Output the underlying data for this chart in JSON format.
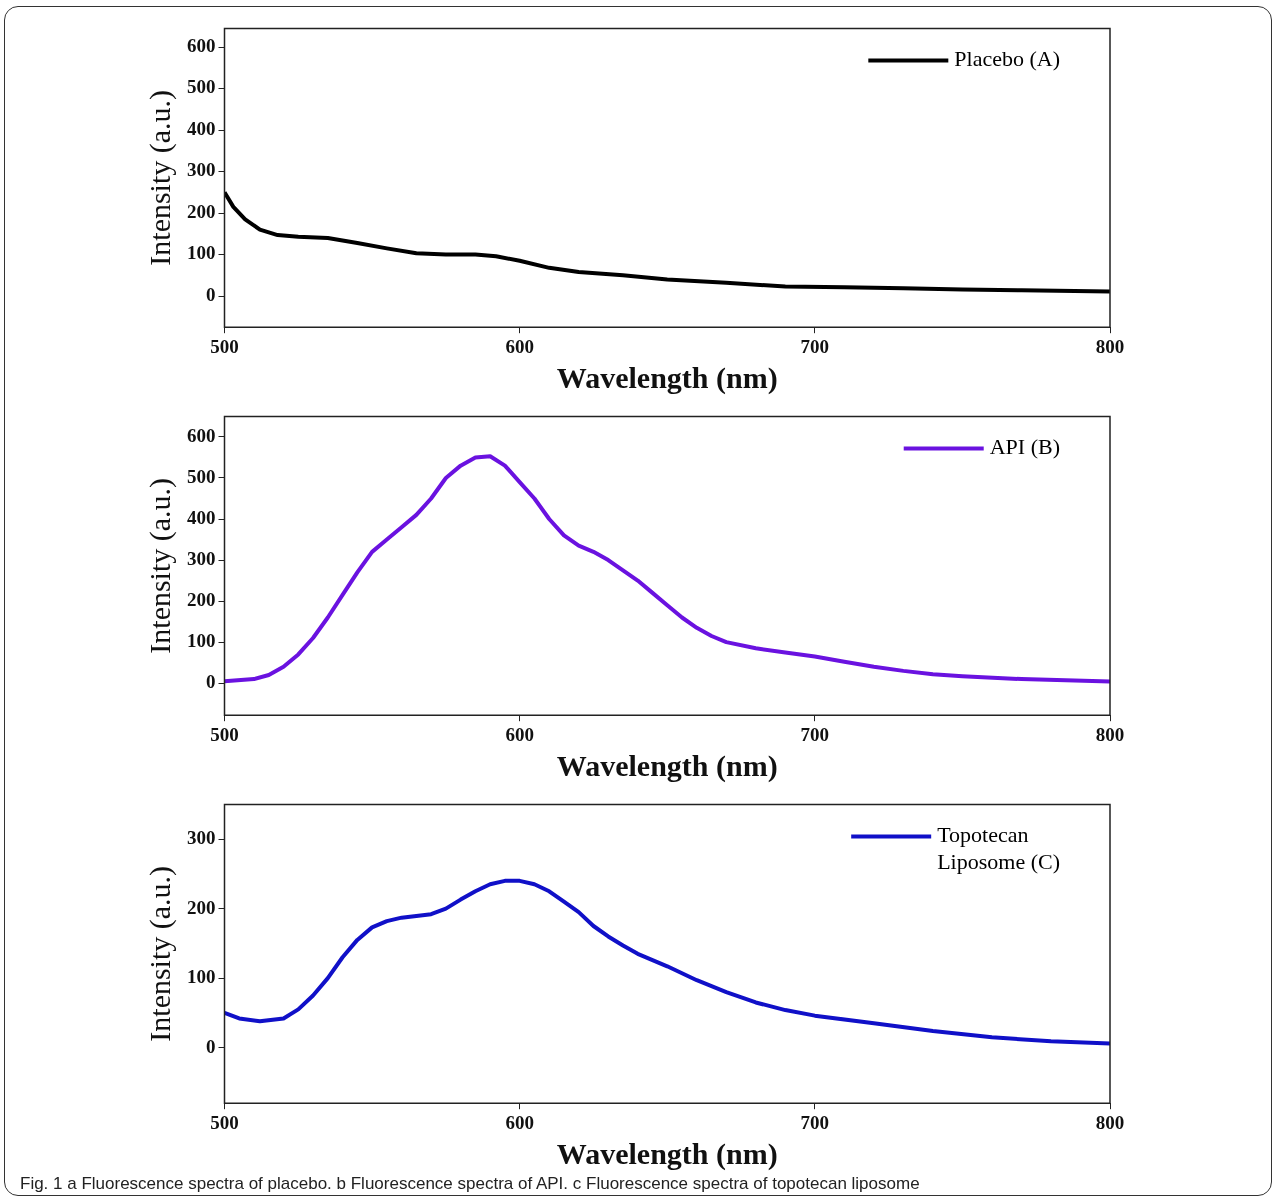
{
  "chart_data": [
    {
      "type": "line",
      "xlabel": "Wavelength (nm)",
      "ylabel": "Intensity (a.u.)",
      "xlim": [
        500,
        800
      ],
      "xticks": [
        500,
        600,
        700,
        800
      ],
      "ylim": [
        -75,
        645
      ],
      "yticks": [
        0,
        100,
        200,
        300,
        400,
        500,
        600
      ],
      "legend": "top right",
      "x": [
        500,
        503,
        507,
        512,
        518,
        525,
        535,
        545,
        555,
        565,
        575,
        585,
        592,
        600,
        610,
        620,
        635,
        650,
        670,
        690,
        710,
        730,
        750,
        770,
        800
      ],
      "series": [
        {
          "name": "Placebo (A)",
          "color": "#000000",
          "values": [
            250,
            215,
            185,
            160,
            147,
            143,
            140,
            128,
            115,
            103,
            100,
            100,
            96,
            85,
            68,
            58,
            50,
            40,
            32,
            23,
            21,
            19,
            16,
            14,
            11
          ]
        }
      ]
    },
    {
      "type": "line",
      "xlabel": "Wavelength (nm)",
      "ylabel": "Intensity (a.u.)",
      "xlim": [
        500,
        800
      ],
      "xticks": [
        500,
        600,
        700,
        800
      ],
      "ylim": [
        -78,
        650
      ],
      "yticks": [
        0,
        100,
        200,
        300,
        400,
        500,
        600
      ],
      "legend": "top right",
      "x": [
        500,
        510,
        515,
        520,
        525,
        530,
        535,
        540,
        545,
        550,
        555,
        560,
        565,
        570,
        575,
        580,
        585,
        590,
        595,
        600,
        605,
        610,
        615,
        620,
        625,
        630,
        635,
        640,
        645,
        650,
        655,
        660,
        665,
        670,
        680,
        690,
        700,
        710,
        720,
        730,
        740,
        750,
        770,
        800
      ],
      "series": [
        {
          "name": "API (B)",
          "color": "#6a12e0",
          "values": [
            5,
            10,
            20,
            40,
            70,
            110,
            160,
            215,
            270,
            320,
            350,
            380,
            410,
            450,
            500,
            530,
            550,
            553,
            530,
            490,
            450,
            400,
            360,
            335,
            320,
            300,
            275,
            250,
            220,
            190,
            160,
            135,
            115,
            100,
            85,
            75,
            65,
            52,
            40,
            30,
            22,
            17,
            10,
            4
          ]
        }
      ]
    },
    {
      "type": "line",
      "xlabel": "Wavelength (nm)",
      "ylabel": "Intensity (a.u.)",
      "xlim": [
        500,
        800
      ],
      "xticks": [
        500,
        600,
        700,
        800
      ],
      "ylim": [
        -80,
        350
      ],
      "yticks": [
        0,
        100,
        200,
        300
      ],
      "legend": "top right",
      "x": [
        500,
        505,
        512,
        520,
        525,
        530,
        535,
        540,
        545,
        550,
        555,
        560,
        570,
        575,
        580,
        585,
        590,
        595,
        600,
        605,
        610,
        615,
        620,
        625,
        630,
        635,
        640,
        650,
        660,
        670,
        680,
        690,
        700,
        720,
        740,
        760,
        780,
        800
      ],
      "series": [
        {
          "name": "Topotecan Liposome (C)",
          "color": "#1010c8",
          "values": [
            50,
            42,
            38,
            42,
            55,
            75,
            100,
            130,
            155,
            173,
            182,
            187,
            192,
            200,
            213,
            225,
            235,
            240,
            240,
            235,
            225,
            210,
            195,
            175,
            160,
            147,
            135,
            117,
            97,
            80,
            65,
            54,
            46,
            35,
            24,
            15,
            9,
            6
          ]
        }
      ],
      "annotations": [
        "Fig. 1 a Fluorescence spectra of placebo. b Fluorescence spectra of API. c Fluorescence spectra of topotecan liposome"
      ]
    }
  ]
}
